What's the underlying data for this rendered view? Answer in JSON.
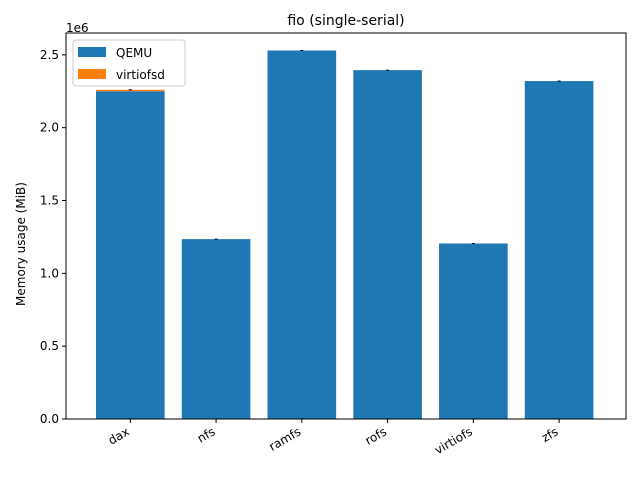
{
  "chart_data": {
    "type": "bar",
    "stacked": true,
    "title": "fio (single-serial)",
    "xlabel": "",
    "ylabel": "Memory usage (MiB)",
    "y_offset_label": "1e6",
    "ylim": [
      0,
      2650000
    ],
    "yticks": [
      0,
      500000,
      1000000,
      1500000,
      2000000,
      2500000
    ],
    "ytick_labels": [
      "0.0",
      "0.5",
      "1.0",
      "1.5",
      "2.0",
      "2.5"
    ],
    "categories": [
      "dax",
      "nfs",
      "ramfs",
      "rofs",
      "virtiofs",
      "zfs"
    ],
    "series": [
      {
        "name": "QEMU",
        "color": "#1f77b4",
        "values": [
          2250000,
          1235000,
          2530000,
          2395000,
          1205000,
          2320000
        ]
      },
      {
        "name": "virtiofsd",
        "color": "#ff7f0e",
        "values": [
          10000,
          0,
          0,
          0,
          0,
          0
        ]
      }
    ],
    "legend_position": "upper-left",
    "grid": false
  }
}
